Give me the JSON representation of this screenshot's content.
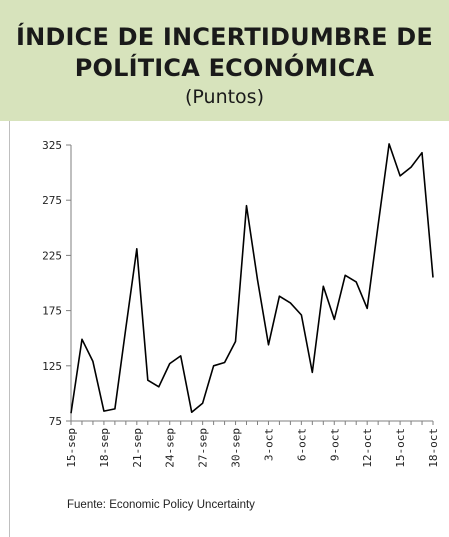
{
  "header": {
    "title_line1": "ÍNDICE DE INCERTIDUMBRE DE",
    "title_line2": "POLÍTICA ECONÓMICA",
    "subtitle": "(Puntos)"
  },
  "source": "Fuente: Economic Policy Uncertainty",
  "chart_data": {
    "type": "line",
    "ylim": [
      75,
      325
    ],
    "yticks": [
      75,
      125,
      175,
      225,
      275,
      325
    ],
    "grid": false,
    "xtick_labels": [
      "15-sep",
      "18-sep",
      "21-sep",
      "24-sep",
      "27-sep",
      "30-sep",
      "3-oct",
      "6-oct",
      "9-oct",
      "12-oct",
      "15-oct",
      "18-oct"
    ],
    "series": [
      {
        "color": "#000000",
        "x": [
          "15-sep",
          "16-sep",
          "17-sep",
          "18-sep",
          "19-sep",
          "20-sep",
          "21-sep",
          "22-sep",
          "23-sep",
          "24-sep",
          "25-sep",
          "26-sep",
          "27-sep",
          "28-sep",
          "29-sep",
          "30-sep",
          "1-oct",
          "2-oct",
          "3-oct",
          "4-oct",
          "5-oct",
          "6-oct",
          "7-oct",
          "8-oct",
          "9-oct",
          "10-oct",
          "11-oct",
          "12-oct",
          "13-oct",
          "14-oct",
          "15-oct",
          "16-oct",
          "17-oct",
          "18-oct"
        ],
        "values": [
          82,
          149,
          129,
          84,
          86,
          159,
          231,
          112,
          106,
          127,
          134,
          83,
          91,
          125,
          128,
          147,
          270,
          203,
          144,
          188,
          182,
          171,
          119,
          197,
          167,
          207,
          201,
          177,
          253,
          326,
          297,
          305,
          318,
          205
        ]
      }
    ]
  }
}
